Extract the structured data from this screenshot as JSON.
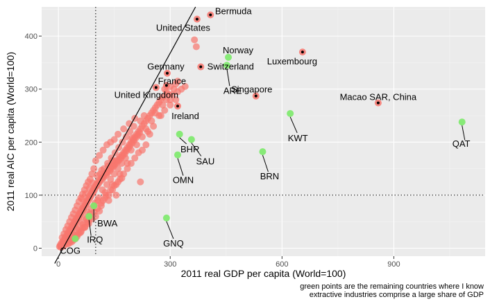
{
  "chart_data": {
    "type": "scatter",
    "xlabel": "2011 real GDP per capita (World=100)",
    "ylabel": "2011 real AIC per capita (World=100)",
    "xlim": [
      -45,
      1145
    ],
    "ylim": [
      -15,
      455
    ],
    "x_ticks": [
      0,
      300,
      600,
      900
    ],
    "y_ticks": [
      0,
      100,
      200,
      300,
      400
    ],
    "reference_lines": [
      {
        "axis": "x",
        "value": 100,
        "style": "dotted"
      },
      {
        "axis": "y",
        "value": 100,
        "style": "dotted"
      }
    ],
    "fit_line": {
      "slope": 1.28,
      "intercept": -16
    },
    "caption": [
      "green points are the remaining countries where I know",
      "extractive industries comprise a large share of GDP"
    ],
    "colors": {
      "red": "#f8766d",
      "green": "#7cea6a",
      "panel": "#ebebeb",
      "grid_major": "#ffffff",
      "grid_minor": "#f4f4f4",
      "highlight_dot": "#000000"
    },
    "background_points": [
      [
        3,
        3
      ],
      [
        5,
        6
      ],
      [
        6,
        4
      ],
      [
        8,
        10
      ],
      [
        10,
        7
      ],
      [
        12,
        13
      ],
      [
        14,
        10
      ],
      [
        15,
        16
      ],
      [
        17,
        14
      ],
      [
        18,
        20
      ],
      [
        20,
        18
      ],
      [
        22,
        24
      ],
      [
        24,
        21
      ],
      [
        25,
        28
      ],
      [
        27,
        25
      ],
      [
        28,
        32
      ],
      [
        30,
        29
      ],
      [
        32,
        36
      ],
      [
        34,
        33
      ],
      [
        35,
        40
      ],
      [
        37,
        37
      ],
      [
        38,
        44
      ],
      [
        40,
        42
      ],
      [
        42,
        48
      ],
      [
        44,
        45
      ],
      [
        45,
        52
      ],
      [
        47,
        50
      ],
      [
        48,
        56
      ],
      [
        50,
        54
      ],
      [
        52,
        60
      ],
      [
        54,
        58
      ],
      [
        55,
        64
      ],
      [
        57,
        62
      ],
      [
        58,
        68
      ],
      [
        60,
        66
      ],
      [
        62,
        72
      ],
      [
        64,
        70
      ],
      [
        65,
        76
      ],
      [
        67,
        74
      ],
      [
        68,
        80
      ],
      [
        70,
        78
      ],
      [
        72,
        84
      ],
      [
        74,
        82
      ],
      [
        75,
        88
      ],
      [
        77,
        86
      ],
      [
        78,
        92
      ],
      [
        80,
        90
      ],
      [
        82,
        96
      ],
      [
        84,
        94
      ],
      [
        85,
        100
      ],
      [
        87,
        98
      ],
      [
        88,
        104
      ],
      [
        90,
        102
      ],
      [
        92,
        108
      ],
      [
        94,
        106
      ],
      [
        95,
        112
      ],
      [
        97,
        110
      ],
      [
        98,
        116
      ],
      [
        100,
        115
      ],
      [
        102,
        120
      ],
      [
        104,
        118
      ],
      [
        105,
        124
      ],
      [
        108,
        122
      ],
      [
        110,
        128
      ],
      [
        112,
        126
      ],
      [
        115,
        132
      ],
      [
        118,
        130
      ],
      [
        120,
        136
      ],
      [
        122,
        134
      ],
      [
        125,
        140
      ],
      [
        128,
        138
      ],
      [
        130,
        144
      ],
      [
        132,
        142
      ],
      [
        135,
        148
      ],
      [
        138,
        146
      ],
      [
        140,
        152
      ],
      [
        142,
        150
      ],
      [
        145,
        156
      ],
      [
        148,
        154
      ],
      [
        150,
        160
      ],
      [
        152,
        158
      ],
      [
        155,
        164
      ],
      [
        158,
        162
      ],
      [
        160,
        168
      ],
      [
        163,
        166
      ],
      [
        165,
        172
      ],
      [
        168,
        170
      ],
      [
        170,
        176
      ],
      [
        172,
        174
      ],
      [
        175,
        180
      ],
      [
        178,
        178
      ],
      [
        180,
        185
      ],
      [
        182,
        183
      ],
      [
        185,
        190
      ],
      [
        188,
        188
      ],
      [
        190,
        195
      ],
      [
        192,
        193
      ],
      [
        195,
        200
      ],
      [
        198,
        198
      ],
      [
        200,
        205
      ],
      [
        203,
        203
      ],
      [
        205,
        210
      ],
      [
        208,
        208
      ],
      [
        210,
        215
      ],
      [
        213,
        213
      ],
      [
        215,
        220
      ],
      [
        218,
        218
      ],
      [
        220,
        225
      ],
      [
        225,
        230
      ],
      [
        230,
        235
      ],
      [
        235,
        240
      ],
      [
        240,
        245
      ],
      [
        245,
        250
      ],
      [
        250,
        255
      ],
      [
        255,
        260
      ],
      [
        260,
        265
      ],
      [
        265,
        270
      ],
      [
        270,
        275
      ],
      [
        275,
        280
      ],
      [
        280,
        285
      ],
      [
        290,
        295
      ],
      [
        295,
        290
      ],
      [
        300,
        305
      ],
      [
        310,
        300
      ],
      [
        315,
        310
      ],
      [
        320,
        315
      ],
      [
        290,
        280
      ],
      [
        285,
        300
      ],
      [
        305,
        290
      ],
      [
        260,
        255
      ],
      [
        230,
        250
      ],
      [
        220,
        240
      ],
      [
        205,
        245
      ],
      [
        190,
        235
      ],
      [
        175,
        225
      ],
      [
        160,
        215
      ],
      [
        150,
        205
      ],
      [
        140,
        200
      ],
      [
        130,
        195
      ],
      [
        120,
        185
      ],
      [
        110,
        175
      ],
      [
        100,
        165
      ],
      [
        95,
        150
      ],
      [
        90,
        140
      ],
      [
        85,
        130
      ],
      [
        80,
        125
      ],
      [
        75,
        118
      ],
      [
        70,
        110
      ],
      [
        65,
        102
      ],
      [
        60,
        95
      ],
      [
        55,
        88
      ],
      [
        50,
        80
      ],
      [
        45,
        72
      ],
      [
        40,
        65
      ],
      [
        35,
        58
      ],
      [
        30,
        50
      ],
      [
        25,
        42
      ],
      [
        20,
        35
      ],
      [
        15,
        27
      ],
      [
        10,
        20
      ],
      [
        112,
        140
      ],
      [
        122,
        150
      ],
      [
        132,
        160
      ],
      [
        142,
        170
      ],
      [
        152,
        180
      ],
      [
        162,
        190
      ],
      [
        172,
        200
      ],
      [
        182,
        210
      ],
      [
        192,
        220
      ],
      [
        202,
        230
      ],
      [
        118,
        110
      ],
      [
        128,
        100
      ],
      [
        108,
        95
      ],
      [
        98,
        85
      ],
      [
        88,
        75
      ],
      [
        78,
        68
      ],
      [
        68,
        58
      ],
      [
        58,
        48
      ],
      [
        48,
        38
      ],
      [
        38,
        28
      ],
      [
        28,
        18
      ],
      [
        18,
        12
      ],
      [
        8,
        5
      ],
      [
        130,
        120
      ],
      [
        140,
        130
      ],
      [
        150,
        140
      ],
      [
        160,
        150
      ],
      [
        170,
        160
      ],
      [
        180,
        170
      ],
      [
        195,
        185
      ],
      [
        210,
        195
      ],
      [
        225,
        210
      ],
      [
        240,
        220
      ],
      [
        270,
        250
      ],
      [
        280,
        270
      ],
      [
        300,
        280
      ],
      [
        250,
        240
      ],
      [
        235,
        225
      ],
      [
        185,
        160
      ],
      [
        165,
        140
      ],
      [
        145,
        120
      ],
      [
        125,
        105
      ],
      [
        105,
        90
      ],
      [
        95,
        80
      ],
      [
        85,
        65
      ],
      [
        75,
        55
      ],
      [
        65,
        45
      ],
      [
        55,
        35
      ],
      [
        45,
        25
      ],
      [
        35,
        15
      ],
      [
        110,
        70
      ],
      [
        120,
        90
      ],
      [
        100,
        60
      ],
      [
        90,
        55
      ],
      [
        80,
        50
      ],
      [
        70,
        40
      ],
      [
        60,
        30
      ],
      [
        50,
        22
      ],
      [
        40,
        15
      ],
      [
        30,
        10
      ],
      [
        140,
        110
      ],
      [
        150,
        118
      ],
      [
        160,
        125
      ],
      [
        170,
        132
      ],
      [
        155,
        100
      ],
      [
        135,
        90
      ],
      [
        115,
        80
      ],
      [
        365,
        393
      ],
      [
        370,
        380
      ],
      [
        330,
        300
      ],
      [
        340,
        305
      ],
      [
        320,
        295
      ],
      [
        315,
        280
      ],
      [
        300,
        270
      ],
      [
        285,
        260
      ],
      [
        275,
        250
      ],
      [
        255,
        230
      ],
      [
        245,
        215
      ],
      [
        235,
        195
      ],
      [
        225,
        185
      ],
      [
        215,
        180
      ],
      [
        205,
        170
      ],
      [
        195,
        160
      ],
      [
        185,
        150
      ],
      [
        175,
        140
      ],
      [
        165,
        130
      ],
      [
        155,
        120
      ],
      [
        145,
        110
      ],
      [
        135,
        100
      ],
      [
        125,
        95
      ],
      [
        115,
        85
      ],
      [
        105,
        75
      ],
      [
        96,
        68
      ],
      [
        86,
        58
      ],
      [
        76,
        48
      ],
      [
        66,
        38
      ],
      [
        56,
        28
      ],
      [
        46,
        18
      ],
      [
        36,
        12
      ],
      [
        26,
        8
      ],
      [
        16,
        5
      ],
      [
        6,
        2
      ],
      [
        11,
        3
      ],
      [
        21,
        9
      ],
      [
        31,
        14
      ],
      [
        41,
        20
      ],
      [
        51,
        26
      ],
      [
        61,
        32
      ],
      [
        71,
        39
      ],
      [
        81,
        46
      ],
      [
        220,
        125
      ],
      [
        198,
        208
      ],
      [
        145,
        165
      ],
      [
        133,
        155
      ],
      [
        116,
        147
      ],
      [
        104,
        137
      ],
      [
        92,
        123
      ],
      [
        83,
        113
      ],
      [
        73,
        103
      ],
      [
        63,
        93
      ]
    ],
    "green_points": [
      {
        "x": 45,
        "y": 18,
        "label": "COG"
      },
      {
        "x": 95,
        "y": 80,
        "label": "BWA"
      },
      {
        "x": 82,
        "y": 60,
        "label": "IRQ"
      },
      {
        "x": 290,
        "y": 57,
        "label": "GNQ"
      },
      {
        "x": 320,
        "y": 176,
        "label": "OMN"
      },
      {
        "x": 325,
        "y": 215,
        "label": "BHR"
      },
      {
        "x": 357,
        "y": 205,
        "label": "SAU"
      },
      {
        "x": 548,
        "y": 182,
        "label": "BRN"
      },
      {
        "x": 622,
        "y": 254,
        "label": "KWT"
      },
      {
        "x": 1083,
        "y": 238,
        "label": "QAT"
      },
      {
        "x": 456,
        "y": 360,
        "label": "Norway"
      },
      {
        "x": 452,
        "y": 345,
        "label": "ARE"
      }
    ],
    "highlighted_points": [
      {
        "x": 372,
        "y": 432,
        "label": "United States"
      },
      {
        "x": 408,
        "y": 440,
        "label": "Bermuda"
      },
      {
        "x": 655,
        "y": 370,
        "label": "Luxembourg"
      },
      {
        "x": 382,
        "y": 342,
        "label": "Switzerland"
      },
      {
        "x": 530,
        "y": 287,
        "label": "Singapore"
      },
      {
        "x": 292,
        "y": 330,
        "label": "Germany"
      },
      {
        "x": 290,
        "y": 307,
        "label": "France"
      },
      {
        "x": 262,
        "y": 303,
        "label": "United Kingdom"
      },
      {
        "x": 320,
        "y": 268,
        "label": "Ireland"
      },
      {
        "x": 858,
        "y": 274,
        "label": "Macao SAR, China"
      }
    ]
  }
}
